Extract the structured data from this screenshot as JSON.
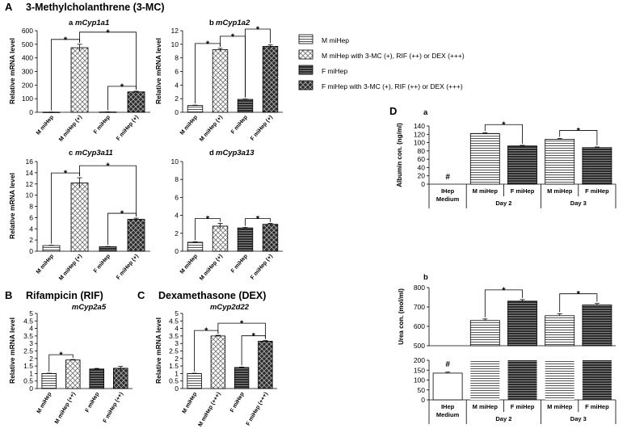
{
  "sections": {
    "A": {
      "letter": "A",
      "title": "3-Methylcholanthrene (3-MC)"
    },
    "B": {
      "letter": "B",
      "title": "Rifampicin (RIF)"
    },
    "C": {
      "letter": "C",
      "title": "Dexamethasone (DEX)"
    },
    "D": {
      "letter": "D"
    }
  },
  "legend": [
    {
      "label": "M miHep",
      "pattern": "hlines"
    },
    {
      "label": "M miHep with 3-MC (+), RIF (++) or DEX (+++)",
      "pattern": "check"
    },
    {
      "label": "F miHep",
      "pattern": "dark-hlines"
    },
    {
      "label": "F miHep with 3-MC (+), RIF (++) or DEX (+++)",
      "pattern": "dark-check"
    }
  ],
  "colors": {
    "dark_fill": "#2b2b2b",
    "light_fill": "#ffffff",
    "stroke": "#000000"
  },
  "chart_data": [
    {
      "id": "a-cyp1a1",
      "type": "bar",
      "panel_letter": "a",
      "gene": "mCyp1a1",
      "ylabel": "Relative mRNA level",
      "ylim": [
        0,
        600
      ],
      "yticks": [
        0,
        100,
        200,
        300,
        400,
        500,
        600
      ],
      "categories": [
        "M miHep",
        "M miHep (+)",
        "F miHep",
        "F miHep (+)"
      ],
      "values": [
        1,
        475,
        2,
        150
      ],
      "errors": [
        0.5,
        25,
        1,
        5
      ],
      "patterns": [
        "hlines",
        "check",
        "dark-hlines",
        "dark-check"
      ],
      "significance": [
        {
          "from": 0,
          "to": 1,
          "label": "*"
        },
        {
          "from": 1,
          "to": 3,
          "label": "*"
        },
        {
          "from": 2,
          "to": 3,
          "label": "*"
        }
      ]
    },
    {
      "id": "b-cyp1a2",
      "type": "bar",
      "panel_letter": "b",
      "gene": "mCyp1a2",
      "ylabel": "Relative mRNA level",
      "ylim": [
        0,
        12
      ],
      "yticks": [
        0,
        2,
        4,
        6,
        8,
        10,
        12
      ],
      "categories": [
        "M miHep",
        "M miHep (+)",
        "F miHep",
        "F miHep (+)"
      ],
      "values": [
        1,
        9.2,
        1.9,
        9.7
      ],
      "errors": [
        0.05,
        0.2,
        0.05,
        0.2
      ],
      "patterns": [
        "hlines",
        "check",
        "dark-hlines",
        "dark-check"
      ],
      "significance": [
        {
          "from": 0,
          "to": 1,
          "label": "*"
        },
        {
          "from": 1,
          "to": 2,
          "label": "*"
        },
        {
          "from": 2,
          "to": 3,
          "label": "*"
        }
      ]
    },
    {
      "id": "c-cyp3a11",
      "type": "bar",
      "panel_letter": "c",
      "gene": "mCyp3a11",
      "ylabel": "Relative mRNA level",
      "ylim": [
        0,
        16
      ],
      "yticks": [
        0,
        2,
        4,
        6,
        8,
        10,
        12,
        14,
        16
      ],
      "categories": [
        "M miHep",
        "M miHep (+)",
        "F miHep",
        "F miHep (+)"
      ],
      "values": [
        1,
        12.2,
        0.8,
        5.7
      ],
      "errors": [
        0.05,
        0.9,
        0.05,
        0.2
      ],
      "patterns": [
        "hlines",
        "check",
        "dark-hlines",
        "dark-check"
      ],
      "significance": [
        {
          "from": 0,
          "to": 1,
          "label": "*"
        },
        {
          "from": 1,
          "to": 3,
          "label": "*"
        },
        {
          "from": 2,
          "to": 3,
          "label": "*"
        }
      ]
    },
    {
      "id": "d-cyp3a13",
      "type": "bar",
      "panel_letter": "d",
      "gene": "mCyp3a13",
      "ylabel": "",
      "ylim": [
        0,
        10
      ],
      "yticks": [
        0,
        2,
        4,
        6,
        8,
        10
      ],
      "categories": [
        "M miHep",
        "M miHep (+)",
        "F miHep",
        "F miHep (+)"
      ],
      "values": [
        1,
        2.8,
        2.6,
        3.0
      ],
      "errors": [
        0.05,
        0.3,
        0.05,
        0.1
      ],
      "patterns": [
        "hlines",
        "check",
        "dark-hlines",
        "dark-check"
      ],
      "significance": [
        {
          "from": 0,
          "to": 1,
          "label": "*"
        },
        {
          "from": 2,
          "to": 3,
          "label": "*"
        }
      ]
    },
    {
      "id": "B-cyp2a5",
      "type": "bar",
      "panel_letter": "",
      "gene": "mCyp2a5",
      "ylabel": "Relative mRNA level",
      "ylim": [
        0,
        5
      ],
      "yticks": [
        0,
        0.5,
        1,
        1.5,
        2,
        2.5,
        3,
        3.5,
        4,
        4.5,
        5
      ],
      "ytick_labels": [
        "0",
        "0.5",
        "1",
        "1.5",
        "2",
        "2.5",
        "3",
        "3.5",
        "4",
        "4.5",
        "5"
      ],
      "categories": [
        "M miHep",
        "M miHep (++)",
        "F miHep",
        "F miHep (++)"
      ],
      "values": [
        1,
        1.9,
        1.3,
        1.35
      ],
      "errors": [
        0.02,
        0.03,
        0.04,
        0.12
      ],
      "patterns": [
        "hlines",
        "check",
        "dark-hlines",
        "dark-check"
      ],
      "significance": [
        {
          "from": 0,
          "to": 1,
          "label": "*"
        }
      ]
    },
    {
      "id": "C-cyp2d22",
      "type": "bar",
      "panel_letter": "",
      "gene": "mCyp2d22",
      "ylabel": "Relative mRNA level",
      "ylim": [
        0,
        5
      ],
      "yticks": [
        0,
        0.5,
        1,
        1.5,
        2,
        2.5,
        3,
        3.5,
        4,
        4.5,
        5
      ],
      "ytick_labels": [
        "0",
        "0.5",
        "1",
        "1.5",
        "2",
        "2.5",
        "3",
        "3.5",
        "4",
        "4.5",
        "5"
      ],
      "categories": [
        "M miHep",
        "M miHep (+++)",
        "F miHep",
        "F miHep (+++)"
      ],
      "values": [
        1,
        3.5,
        1.4,
        3.15
      ],
      "errors": [
        0.02,
        0.04,
        0.03,
        0.04
      ],
      "patterns": [
        "hlines",
        "check",
        "dark-hlines",
        "dark-check"
      ],
      "significance": [
        {
          "from": 0,
          "to": 1,
          "label": "*"
        },
        {
          "from": 1,
          "to": 3,
          "label": "*"
        },
        {
          "from": 2,
          "to": 3,
          "label": "*"
        }
      ]
    },
    {
      "id": "Da-albumin",
      "type": "bar",
      "panel_letter": "a",
      "ylabel": "Albumin con. (ng/ml)",
      "ylim": [
        0,
        140
      ],
      "yticks": [
        0,
        20,
        40,
        60,
        80,
        100,
        120,
        140
      ],
      "categories": [
        "IHep Medium",
        "M miHep",
        "F miHep",
        "M miHep",
        "F miHep"
      ],
      "groups": [
        {
          "label": "Day 2",
          "from": 1,
          "to": 2
        },
        {
          "label": "Day 3",
          "from": 3,
          "to": 4
        }
      ],
      "values": [
        0,
        122,
        92,
        108,
        88
      ],
      "errors": [
        0,
        2,
        1.5,
        2,
        1.5
      ],
      "patterns": [
        "none",
        "hlines",
        "dark-hlines",
        "hlines",
        "dark-hlines"
      ],
      "markers": [
        {
          "index": 0,
          "label": "#"
        }
      ],
      "significance": [
        {
          "from": 1,
          "to": 2,
          "label": "*"
        },
        {
          "from": 3,
          "to": 4,
          "label": "*"
        }
      ]
    },
    {
      "id": "Db-urea",
      "type": "bar",
      "panel_letter": "b",
      "ylabel": "Urea con. (mol/ml)",
      "broken_axis": true,
      "ylim_upper": [
        500,
        800
      ],
      "yticks_upper": [
        500,
        600,
        700,
        800
      ],
      "ylim_lower": [
        0,
        200
      ],
      "yticks_lower": [
        0,
        50,
        100,
        150,
        200
      ],
      "categories": [
        "IHep Medium",
        "M miHep",
        "F miHep",
        "M miHep",
        "F miHep"
      ],
      "groups": [
        {
          "label": "Day 2",
          "from": 1,
          "to": 2
        },
        {
          "label": "Day 3",
          "from": 3,
          "to": 4
        }
      ],
      "values": [
        135,
        630,
        730,
        655,
        710
      ],
      "errors": [
        5,
        8,
        8,
        10,
        8
      ],
      "patterns": [
        "white",
        "hlines",
        "dark-hlines",
        "hlines",
        "dark-hlines"
      ],
      "markers": [
        {
          "index": 0,
          "label": "#"
        }
      ],
      "significance": [
        {
          "from": 1,
          "to": 2,
          "label": "*"
        },
        {
          "from": 3,
          "to": 4,
          "label": "*"
        }
      ]
    }
  ]
}
